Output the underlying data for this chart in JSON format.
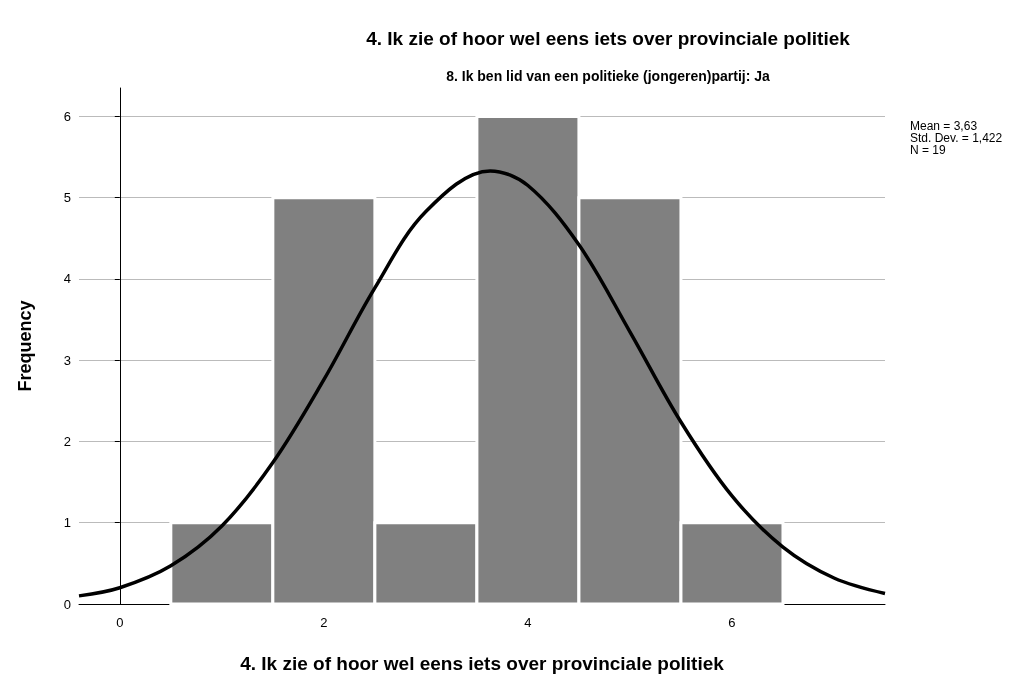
{
  "chart_data": {
    "type": "histogram",
    "title": "4. Ik zie of hoor wel eens iets over provinciale politiek",
    "subtitle": "8. Ik ben lid van een politieke (jongeren)partij: Ja",
    "xlabel": "4. Ik zie of hoor wel eens iets over provinciale politiek",
    "ylabel": "Frequency",
    "bins": [
      0.5,
      1.5,
      2.5,
      3.5,
      4.5,
      5.5,
      6.5
    ],
    "values": [
      1,
      5,
      1,
      6,
      5,
      1
    ],
    "color": "#808080",
    "series": [
      {
        "type": "line",
        "color": "#000000",
        "x": [
          -0.4,
          0,
          0.5,
          1,
          1.5,
          2,
          2.5,
          3,
          3.63,
          4,
          4.5,
          5,
          5.5,
          6,
          6.5,
          7,
          7.5
        ],
        "values": [
          0.1,
          0.2,
          0.47,
          0.96,
          1.74,
          2.76,
          3.89,
          4.83,
          5.33,
          5.15,
          4.42,
          3.35,
          2.24,
          1.33,
          0.7,
          0.32,
          0.13
        ]
      }
    ],
    "xlim": [
      -0.4,
      7.5
    ],
    "xticks": [
      0,
      2,
      4,
      6
    ],
    "ylim": [
      0,
      6.35
    ],
    "yticks": [
      0,
      1,
      2,
      3,
      4,
      5,
      6
    ],
    "grid": "y",
    "annotations": [
      "Mean = 3,63\nStd. Dev. = 1,422\nN = 19"
    ]
  }
}
